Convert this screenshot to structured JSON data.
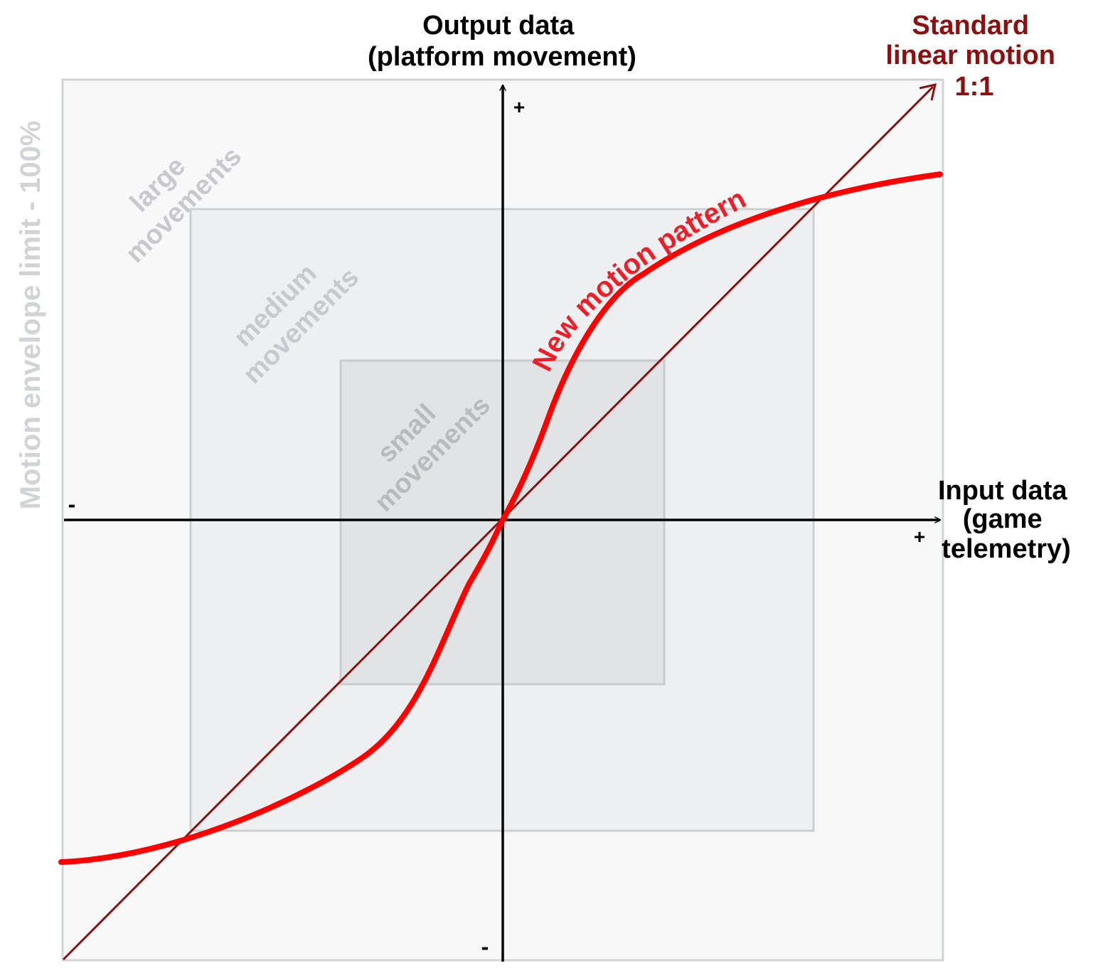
{
  "title_y": [
    "Output data",
    "(platform movement)"
  ],
  "title_x": [
    "Input data",
    "(game",
    "telemetry)"
  ],
  "standard_label": [
    "Standard",
    "linear motion",
    "1:1"
  ],
  "new_pattern_label": "New motion pattern",
  "envelope_label": "Motion envelope limit - 100%",
  "zones": {
    "large": [
      "large",
      "movements"
    ],
    "medium": [
      "medium",
      "movements"
    ],
    "small": [
      "small",
      "movements"
    ]
  },
  "signs": {
    "y_pos": "+",
    "y_neg": "-",
    "x_pos": "+",
    "x_neg": "-"
  },
  "colors": {
    "standard": "#8b1010",
    "new_pattern": "#ff0000",
    "new_pattern_text": "#e8202a",
    "zone_text": "#c8c9cc",
    "envelope_text": "#d2d3d6"
  }
}
